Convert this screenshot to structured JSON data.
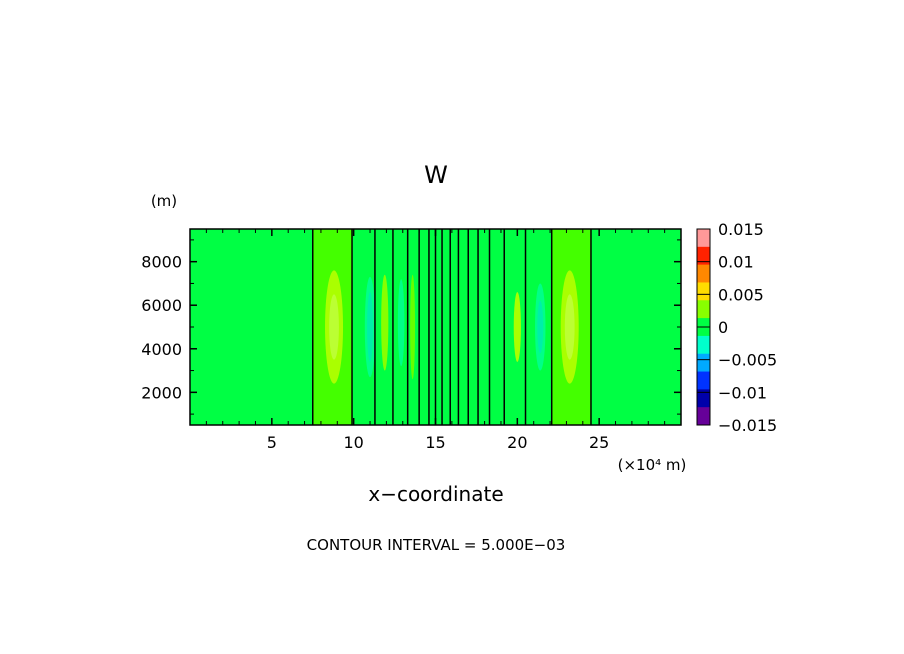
{
  "chart_data": {
    "type": "heatmap",
    "title": "W",
    "xlabel": "x−coordinate",
    "x_unit": "(×10⁴ m)",
    "y_unit": "(m)",
    "footer": "CONTOUR INTERVAL = 5.000E−03",
    "xlim": [
      0,
      30
    ],
    "ylim": [
      500,
      9500
    ],
    "x_ticks": [
      5,
      10,
      15,
      20,
      25
    ],
    "x_tick_labels": [
      "5",
      "10",
      "15",
      "20",
      "25"
    ],
    "y_ticks": [
      2000,
      4000,
      6000,
      8000
    ],
    "y_tick_labels": [
      "2000",
      "4000",
      "6000",
      "8000"
    ],
    "contour_interval": 0.005,
    "field_color_zero": "#00ff44",
    "colorbar": {
      "levels": [
        0.015,
        0.01,
        0.005,
        0,
        -0.005,
        -0.01,
        -0.015
      ],
      "labels": [
        "0.015",
        "0.01",
        "0.005",
        "0",
        "−0.005",
        "−0.01",
        "−0.015"
      ],
      "colors_top_to_bottom": [
        "#ff9999",
        "#ff2200",
        "#ff8800",
        "#ffdd00",
        "#88ff00",
        "#00ff44",
        "#00ffcc",
        "#00aaff",
        "#0033ff",
        "#0000aa",
        "#660099"
      ]
    },
    "vertical_lines_x": [
      7.5,
      9.9,
      11.3,
      12.4,
      13.3,
      14.0,
      14.6,
      15.0,
      15.4,
      15.9,
      16.4,
      17.0,
      17.6,
      18.3,
      19.2,
      20.5,
      22.1,
      24.5
    ],
    "bands": [
      {
        "x0": 7.5,
        "x1": 9.9,
        "color": "#44ff00"
      },
      {
        "x0": 22.1,
        "x1": 24.5,
        "color": "#44ff00"
      }
    ],
    "cells": [
      {
        "x": 8.8,
        "y": 5000,
        "rx": 0.55,
        "ry": 2600,
        "color": "#aaff00"
      },
      {
        "x": 8.8,
        "y": 5000,
        "rx": 0.3,
        "ry": 1500,
        "color": "#bbff33"
      },
      {
        "x": 11.0,
        "y": 5000,
        "rx": 0.32,
        "ry": 2300,
        "color": "#00ff88"
      },
      {
        "x": 11.0,
        "y": 5000,
        "rx": 0.18,
        "ry": 1600,
        "color": "#00eeaa"
      },
      {
        "x": 11.9,
        "y": 5200,
        "rx": 0.22,
        "ry": 2200,
        "color": "#88ff00"
      },
      {
        "x": 12.9,
        "y": 5200,
        "rx": 0.2,
        "ry": 2000,
        "color": "#00ff88"
      },
      {
        "x": 13.6,
        "y": 5000,
        "rx": 0.15,
        "ry": 2400,
        "color": "#66ff00"
      },
      {
        "x": 20.0,
        "y": 5000,
        "rx": 0.22,
        "ry": 1600,
        "color": "#aaff00"
      },
      {
        "x": 21.4,
        "y": 5000,
        "rx": 0.32,
        "ry": 2000,
        "color": "#00ff88"
      },
      {
        "x": 21.4,
        "y": 5000,
        "rx": 0.18,
        "ry": 1200,
        "color": "#00eeaa"
      },
      {
        "x": 23.2,
        "y": 5000,
        "rx": 0.55,
        "ry": 2600,
        "color": "#aaff00"
      },
      {
        "x": 23.2,
        "y": 5000,
        "rx": 0.3,
        "ry": 1500,
        "color": "#bbff33"
      }
    ]
  }
}
